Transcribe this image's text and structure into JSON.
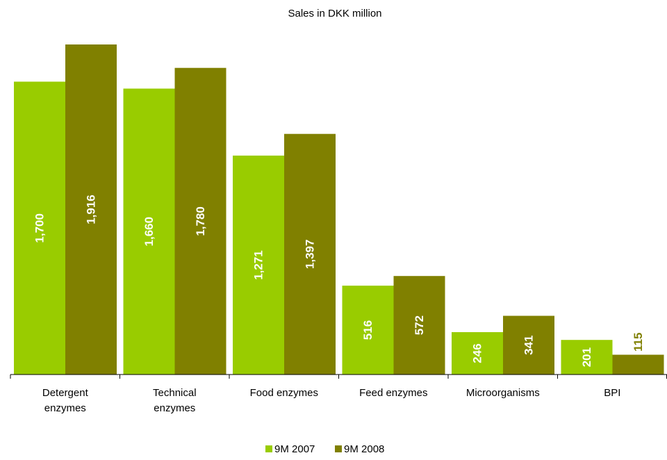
{
  "chart_data": {
    "type": "bar",
    "title": "Sales in DKK million",
    "xlabel": "",
    "ylabel": "",
    "ylim": [
      0,
      2000
    ],
    "grid": false,
    "legend_position": "bottom",
    "categories": [
      [
        "Detergent",
        "enzymes"
      ],
      [
        "Technical",
        "enzymes"
      ],
      [
        "Food enzymes"
      ],
      [
        "Feed enzymes"
      ],
      [
        "Microorganisms"
      ],
      [
        "BPI"
      ]
    ],
    "series": [
      {
        "name": "9M 2007",
        "color": "#99cc00",
        "values": [
          1700,
          1660,
          1271,
          516,
          246,
          201
        ],
        "labels": [
          "1,700",
          "1,660",
          "1,271",
          "516",
          "246",
          "201"
        ]
      },
      {
        "name": "9M 2008",
        "color": "#808000",
        "values": [
          1916,
          1780,
          1397,
          572,
          341,
          115
        ],
        "labels": [
          "1,916",
          "1,780",
          "1,397",
          "572",
          "341",
          "115"
        ]
      }
    ]
  }
}
